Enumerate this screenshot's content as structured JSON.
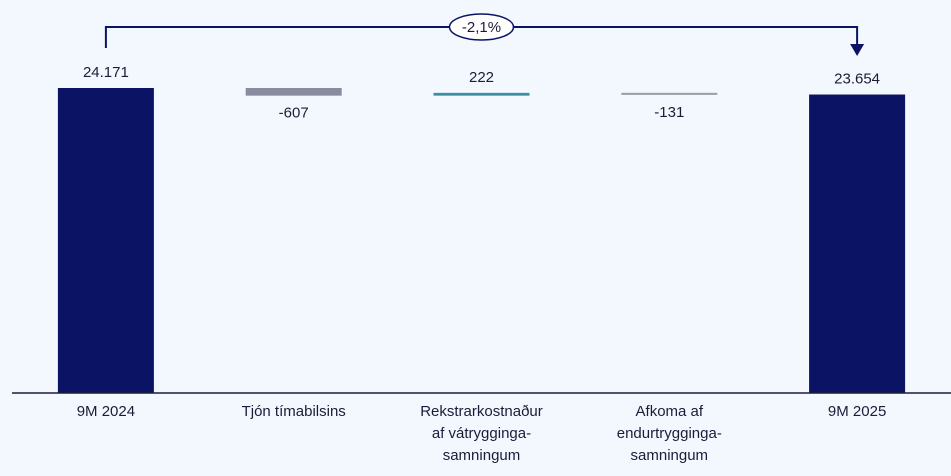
{
  "chart_data": {
    "type": "waterfall",
    "categories": [
      "9M 2024",
      "Tjón tímabilsins",
      "Rekstrarkostnaður\naf vátrygginga-\nsamningum",
      "Afkoma af\nendurtrygginga-\nsamningum",
      "9M 2025"
    ],
    "values": [
      24171,
      -607,
      222,
      -131,
      23654
    ],
    "value_labels": [
      "24.171",
      "-607",
      "222",
      "-131",
      "23.654"
    ],
    "measure": [
      "total",
      "relative",
      "relative",
      "relative",
      "total"
    ],
    "colors": [
      "#0b1464",
      "#8a8b9f",
      "#3b8ea6",
      "#9a9bab",
      "#0b1464"
    ],
    "annotation": "-2,1%"
  }
}
